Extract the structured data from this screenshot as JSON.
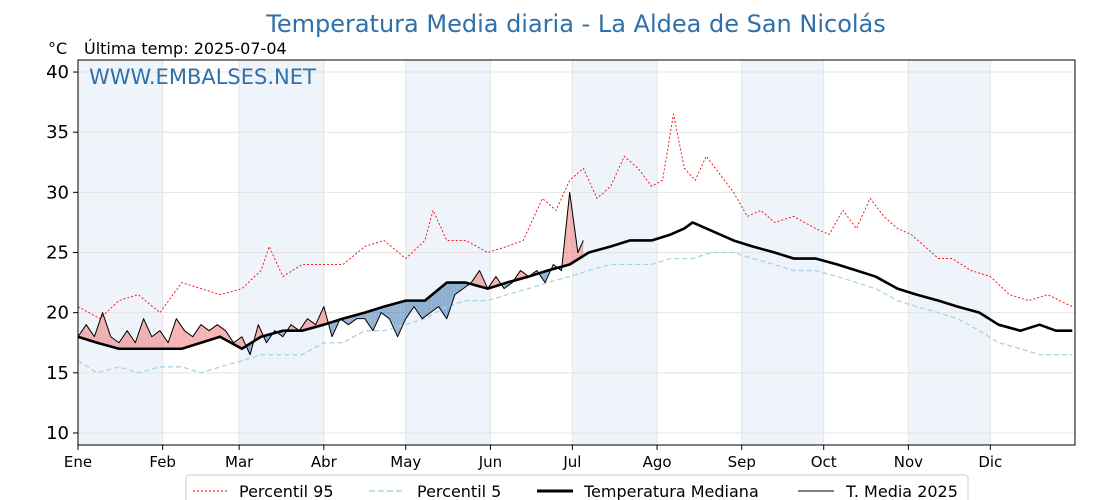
{
  "chart_data": {
    "type": "line",
    "title": "Temperatura Media diaria - La Aldea de San Nicolás",
    "unit_label": "°C",
    "last_update": "Última temp: 2025-07-04",
    "watermark": "WWW.EMBALSES.NET",
    "ylim": [
      9,
      41
    ],
    "yticks": [
      10,
      15,
      20,
      25,
      30,
      35,
      40
    ],
    "x_days": 365,
    "month_labels": [
      "Ene",
      "Feb",
      "Mar",
      "Abr",
      "May",
      "Jun",
      "Jul",
      "Ago",
      "Sep",
      "Oct",
      "Nov",
      "Dic"
    ],
    "month_start_days": [
      0,
      31,
      59,
      90,
      120,
      151,
      181,
      212,
      243,
      273,
      304,
      334
    ],
    "grid": true,
    "legend_position": "bottom-center",
    "series": [
      {
        "name": "Percentil 95",
        "style": "dotted",
        "color": "#ff0000",
        "x": [
          0,
          8,
          15,
          22,
          30,
          38,
          45,
          52,
          60,
          67,
          70,
          75,
          82,
          90,
          97,
          105,
          112,
          120,
          127,
          130,
          135,
          142,
          150,
          157,
          163,
          170,
          175,
          180,
          185,
          190,
          195,
          200,
          205,
          210,
          214,
          218,
          222,
          226,
          230,
          235,
          240,
          245,
          250,
          255,
          262,
          270,
          275,
          280,
          285,
          290,
          295,
          300,
          305,
          310,
          315,
          320,
          327,
          334,
          341,
          348,
          355,
          364
        ],
        "values": [
          20.5,
          19.5,
          21.0,
          21.5,
          20.0,
          22.5,
          22.0,
          21.5,
          22.0,
          23.5,
          25.5,
          23.0,
          24.0,
          24.0,
          24.0,
          25.5,
          26.0,
          24.5,
          26.0,
          28.5,
          26.0,
          26.0,
          25.0,
          25.5,
          26.0,
          29.5,
          28.5,
          31.0,
          32.0,
          29.5,
          30.5,
          33.0,
          32.0,
          30.5,
          31.0,
          36.5,
          32.0,
          31.0,
          33.0,
          31.5,
          30.0,
          28.0,
          28.5,
          27.5,
          28.0,
          27.0,
          26.5,
          28.5,
          27.0,
          29.5,
          28.0,
          27.0,
          26.5,
          25.5,
          24.5,
          24.5,
          23.5,
          23.0,
          21.5,
          21.0,
          21.5,
          20.5
        ]
      },
      {
        "name": "Percentil 5",
        "style": "dashed",
        "color": "#a8d5e2",
        "x": [
          0,
          7,
          15,
          22,
          30,
          38,
          45,
          52,
          60,
          67,
          75,
          82,
          90,
          97,
          105,
          112,
          120,
          127,
          135,
          142,
          150,
          157,
          165,
          172,
          180,
          187,
          195,
          202,
          210,
          217,
          225,
          232,
          240,
          247,
          255,
          262,
          270,
          278,
          285,
          292,
          300,
          307,
          315,
          322,
          330,
          337,
          345,
          352,
          358,
          364
        ],
        "values": [
          16.0,
          15.0,
          15.5,
          15.0,
          15.5,
          15.5,
          15.0,
          15.5,
          16.0,
          16.5,
          16.5,
          16.5,
          17.5,
          17.5,
          18.5,
          18.5,
          19.0,
          19.5,
          20.5,
          21.0,
          21.0,
          21.5,
          22.0,
          22.5,
          23.0,
          23.5,
          24.0,
          24.0,
          24.0,
          24.5,
          24.5,
          25.0,
          25.0,
          24.5,
          24.0,
          23.5,
          23.5,
          23.0,
          22.5,
          22.0,
          21.0,
          20.5,
          20.0,
          19.5,
          18.5,
          17.5,
          17.0,
          16.5,
          16.5,
          16.5
        ]
      },
      {
        "name": "Temperatura Mediana",
        "style": "solid-thick",
        "color": "#000000",
        "x": [
          0,
          7,
          15,
          22,
          30,
          38,
          45,
          52,
          60,
          67,
          75,
          82,
          90,
          97,
          105,
          112,
          120,
          127,
          135,
          142,
          150,
          157,
          165,
          172,
          180,
          187,
          195,
          202,
          210,
          217,
          222,
          225,
          230,
          235,
          240,
          247,
          255,
          262,
          270,
          278,
          285,
          292,
          300,
          307,
          315,
          322,
          330,
          337,
          345,
          352,
          358,
          364
        ],
        "values": [
          18.0,
          17.5,
          17.0,
          17.0,
          17.0,
          17.0,
          17.5,
          18.0,
          17.0,
          18.0,
          18.5,
          18.5,
          19.0,
          19.5,
          20.0,
          20.5,
          21.0,
          21.0,
          22.5,
          22.5,
          22.0,
          22.5,
          23.0,
          23.5,
          24.0,
          25.0,
          25.5,
          26.0,
          26.0,
          26.5,
          27.0,
          27.5,
          27.0,
          26.5,
          26.0,
          25.5,
          25.0,
          24.5,
          24.5,
          24.0,
          23.5,
          23.0,
          22.0,
          21.5,
          21.0,
          20.5,
          20.0,
          19.0,
          18.5,
          19.0,
          18.5,
          18.5
        ]
      },
      {
        "name": "T. Media 2025",
        "style": "solid-thin",
        "color": "#000000",
        "x": [
          0,
          3,
          6,
          9,
          12,
          15,
          18,
          21,
          24,
          27,
          30,
          33,
          36,
          39,
          42,
          45,
          48,
          51,
          54,
          57,
          60,
          63,
          66,
          69,
          72,
          75,
          78,
          81,
          84,
          87,
          90,
          93,
          96,
          99,
          102,
          105,
          108,
          111,
          114,
          117,
          120,
          123,
          126,
          129,
          132,
          135,
          138,
          141,
          144,
          147,
          150,
          153,
          156,
          159,
          162,
          165,
          168,
          171,
          174,
          177,
          180,
          183,
          185
        ],
        "values": [
          18.0,
          19.0,
          18.0,
          20.0,
          18.0,
          17.5,
          18.5,
          17.5,
          19.5,
          18.0,
          18.5,
          17.5,
          19.5,
          18.5,
          18.0,
          19.0,
          18.5,
          19.0,
          18.5,
          17.5,
          18.0,
          16.5,
          19.0,
          17.5,
          18.5,
          18.0,
          19.0,
          18.5,
          19.5,
          19.0,
          20.5,
          18.0,
          19.5,
          19.0,
          19.5,
          19.5,
          18.5,
          20.0,
          19.5,
          18.0,
          19.5,
          20.5,
          19.5,
          20.0,
          20.5,
          19.5,
          21.5,
          22.0,
          22.5,
          23.5,
          22.0,
          23.0,
          22.0,
          22.5,
          23.5,
          23.0,
          23.5,
          22.5,
          24.0,
          23.5,
          30.0,
          25.0,
          26.0
        ]
      }
    ]
  },
  "legend": {
    "p95": "Percentil 95",
    "p5": "Percentil 5",
    "mediana": "Temperatura Mediana",
    "media2025": "T. Media 2025"
  },
  "colors": {
    "above_fill": "#f08080",
    "below_fill": "#4a7fb5",
    "band": "#eef4fa",
    "title": "#2f70a8"
  }
}
